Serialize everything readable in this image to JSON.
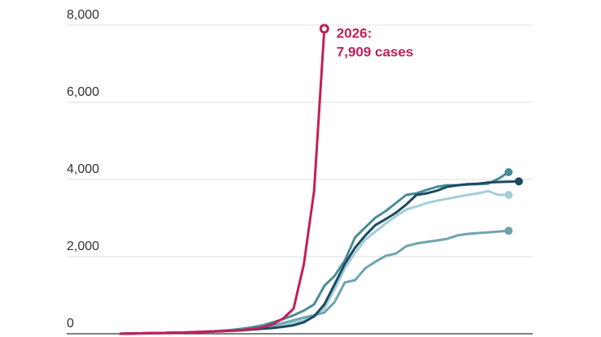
{
  "chart_data": {
    "type": "line",
    "categories": [
      null,
      null,
      null,
      null,
      null,
      null,
      null,
      null,
      null,
      null,
      null,
      null,
      null,
      null,
      null,
      null,
      null,
      null,
      null,
      null,
      null,
      null,
      null,
      null,
      null,
      null,
      null,
      null,
      null,
      null,
      null,
      null,
      null,
      null,
      null,
      null,
      null,
      null,
      null,
      null
    ],
    "series": [
      {
        "color": "#4a8c96",
        "marker": "filled",
        "values": [
          0,
          5,
          10,
          15,
          20,
          25,
          30,
          40,
          50,
          60,
          80,
          100,
          130,
          170,
          220,
          300,
          380,
          480,
          600,
          760,
          1240,
          1500,
          1900,
          2500,
          2760,
          3010,
          3180,
          3390,
          3600,
          3640,
          3730,
          3810,
          3850,
          3850,
          3870,
          3880,
          3890,
          4020,
          4190,
          null
        ]
      },
      {
        "color": "#a3ced6",
        "marker": "filled",
        "values": [
          0,
          5,
          10,
          15,
          20,
          25,
          30,
          35,
          45,
          55,
          70,
          85,
          100,
          120,
          150,
          180,
          220,
          280,
          350,
          450,
          650,
          1150,
          1700,
          2100,
          2440,
          2650,
          2860,
          3050,
          3220,
          3300,
          3390,
          3450,
          3500,
          3550,
          3600,
          3640,
          3700,
          3600,
          3600,
          null
        ]
      },
      {
        "color": "#6ea4ae",
        "marker": "filled",
        "values": [
          0,
          5,
          10,
          15,
          20,
          25,
          30,
          40,
          50,
          60,
          75,
          90,
          110,
          140,
          180,
          220,
          280,
          350,
          420,
          480,
          550,
          820,
          1330,
          1390,
          1700,
          1870,
          2020,
          2080,
          2270,
          2340,
          2380,
          2420,
          2460,
          2550,
          2590,
          2610,
          2630,
          2650,
          2670,
          null
        ]
      },
      {
        "color": "#1b4a63",
        "marker": "filled",
        "values": [
          0,
          5,
          10,
          15,
          20,
          25,
          30,
          35,
          45,
          55,
          65,
          75,
          90,
          110,
          130,
          150,
          180,
          220,
          300,
          450,
          760,
          1280,
          1810,
          2230,
          2550,
          2820,
          2970,
          3140,
          3350,
          3600,
          3640,
          3710,
          3810,
          3850,
          3880,
          3890,
          3920,
          3935,
          3940,
          3950
        ]
      },
      {
        "color": "#c41e5a",
        "marker": "open",
        "values": [
          0,
          5,
          10,
          15,
          20,
          25,
          30,
          40,
          50,
          60,
          70,
          85,
          100,
          130,
          170,
          250,
          400,
          650,
          1800,
          3700,
          7909,
          null,
          null,
          null,
          null,
          null,
          null,
          null,
          null,
          null,
          null,
          null,
          null,
          null,
          null,
          null,
          null,
          null,
          null,
          null
        ]
      }
    ],
    "annotation": {
      "lines": [
        "2026:",
        "7,909 cases"
      ],
      "color": "#c41e5a"
    },
    "ylim": [
      0,
      8000
    ],
    "yticks": [
      0,
      {
        "value": 2000,
        "label": "2,000"
      },
      {
        "value": 4000,
        "label": "4,000"
      },
      {
        "value": 6000,
        "label": "6,000"
      },
      {
        "value": 8000,
        "label": "8,000"
      }
    ],
    "grid": true
  }
}
